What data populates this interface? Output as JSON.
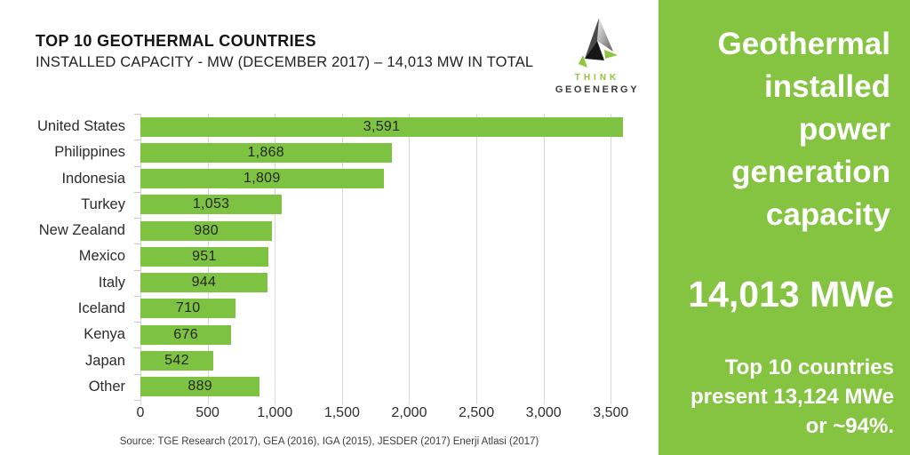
{
  "header": {
    "title": "TOP 10 GEOTHERMAL COUNTRIES",
    "subtitle": "INSTALLED CAPACITY - MW (DECEMBER 2017) – 14,013 MW IN TOTAL"
  },
  "logo": {
    "top": "THINK",
    "bottom": "GEOENERGY"
  },
  "chart_data": {
    "type": "bar",
    "orientation": "horizontal",
    "title": "TOP 10 GEOTHERMAL COUNTRIES",
    "subtitle": "INSTALLED CAPACITY - MW (DECEMBER 2017) – 14,013 MW IN TOTAL",
    "categories": [
      "United States",
      "Philippines",
      "Indonesia",
      "Turkey",
      "New Zealand",
      "Mexico",
      "Italy",
      "Iceland",
      "Kenya",
      "Japan",
      "Other"
    ],
    "values": [
      3591,
      1868,
      1809,
      1053,
      980,
      951,
      944,
      710,
      676,
      542,
      889
    ],
    "value_labels": [
      "3,591",
      "1,868",
      "1,809",
      "1,053",
      "980",
      "951",
      "944",
      "710",
      "676",
      "542",
      "889"
    ],
    "x_tick_values": [
      0,
      500,
      1000,
      1500,
      2000,
      2500,
      3000,
      3500
    ],
    "x_ticks": [
      "0",
      "500",
      "1,000",
      "1,500",
      "2,000",
      "2,500",
      "3,000",
      "3,500"
    ],
    "xlim": [
      0,
      3650
    ],
    "grid": true,
    "xlabel": "",
    "ylabel": "",
    "bar_color": "#7EC242",
    "total_mw": "14,013"
  },
  "source": "Source: TGE Research (2017), GEA (2016), IGA (2015), JESDER (2017) Enerji Atlasi (2017)",
  "panel": {
    "heading_lines": [
      "Geothermal",
      "installed",
      "power",
      "generation",
      "capacity"
    ],
    "big_number": "14,013 MWe",
    "caption_lines": [
      "Top 10 countries",
      "present 13,124 MWe",
      "or ~94%."
    ],
    "background": "#85C441",
    "text_color": "#FFFFFF"
  },
  "colors": {
    "bar": "#7EC242",
    "panel": "#85C441",
    "grid": "#D8D8D8",
    "logo_green": "#8DC63F",
    "logo_dark": "#3A3A3A"
  }
}
